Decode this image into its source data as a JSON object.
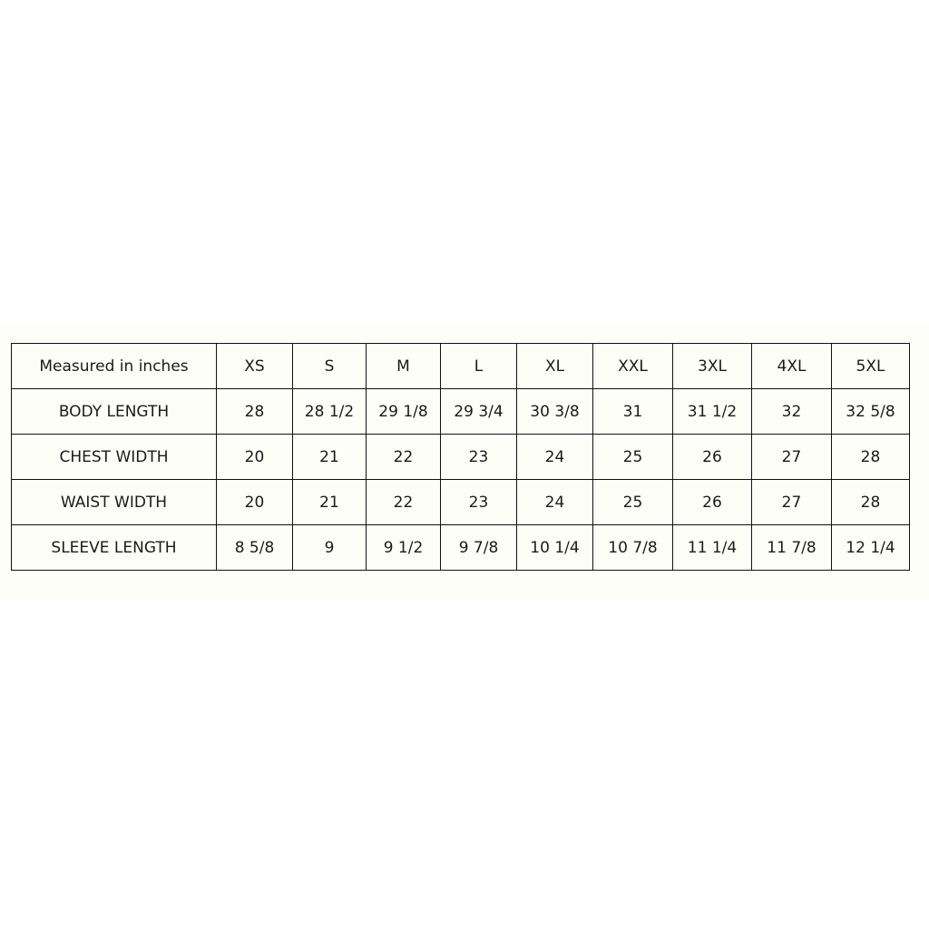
{
  "table": {
    "header": [
      "Measured in inches",
      "XS",
      "S",
      "M",
      "L",
      "XL",
      "XXL",
      "3XL",
      "4XL",
      "5XL"
    ],
    "rows": [
      [
        "BODY LENGTH",
        "28",
        "28 1/2",
        "29 1/8",
        "29 3/4",
        "30 3/8",
        "31",
        "31 1/2",
        "32",
        "32 5/8"
      ],
      [
        "CHEST WIDTH",
        "20",
        "21",
        "22",
        "23",
        "24",
        "25",
        "26",
        "27",
        "28"
      ],
      [
        "WAIST WIDTH",
        "20",
        "21",
        "22",
        "23",
        "24",
        "25",
        "26",
        "27",
        "28"
      ],
      [
        "SLEEVE LENGTH",
        "8 5/8",
        "9",
        "9 1/2",
        "9 7/8",
        "10 1/4",
        "10 7/8",
        "11 1/4",
        "11 7/8",
        "12 1/4"
      ]
    ]
  }
}
